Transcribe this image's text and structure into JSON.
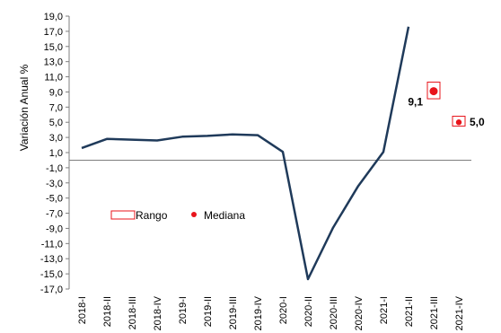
{
  "chart_data": {
    "type": "line",
    "title": "",
    "xlabel": "",
    "ylabel": "Variación Anual %",
    "ylim": [
      -17.0,
      19.0
    ],
    "yticks": [
      "19,0",
      "17,0",
      "15,0",
      "13,0",
      "11,0",
      "9,0",
      "7,0",
      "5,0",
      "3,0",
      "1,0",
      "-1,0",
      "-3,0",
      "-5,0",
      "-7,0",
      "-9,0",
      "-11,0",
      "-13,0",
      "-15,0",
      "-17,0"
    ],
    "categories": [
      "2018-I",
      "2018-II",
      "2018-III",
      "2018-IV",
      "2019-I",
      "2019-II",
      "2019-III",
      "2019-IV",
      "2020-I",
      "2020-II",
      "2020-III",
      "2020-IV",
      "2021-I",
      "2021-II",
      "2021-III",
      "2021-IV"
    ],
    "grid": false,
    "series": [
      {
        "values": [
          1.6,
          2.8,
          2.7,
          2.6,
          3.1,
          3.2,
          3.4,
          3.3,
          1.1,
          -15.7,
          -8.9,
          -3.4,
          1.1,
          17.6,
          null,
          null
        ]
      }
    ],
    "range": [
      {
        "category": "2021-III",
        "low": 8.1,
        "high": 10.3
      },
      {
        "category": "2021-IV",
        "low": 4.5,
        "high": 5.8
      }
    ],
    "median": [
      {
        "category": "2021-III",
        "value": 9.1,
        "label": "9,1"
      },
      {
        "category": "2021-IV",
        "value": 5.0,
        "label": "5,0"
      }
    ],
    "legend": {
      "placement": "left",
      "range_label": "Rango",
      "median_label": "Mediana"
    },
    "colors": {
      "line": "#1f3a5a",
      "marker": "#e8141b",
      "axis": "#7f7f7f"
    }
  }
}
